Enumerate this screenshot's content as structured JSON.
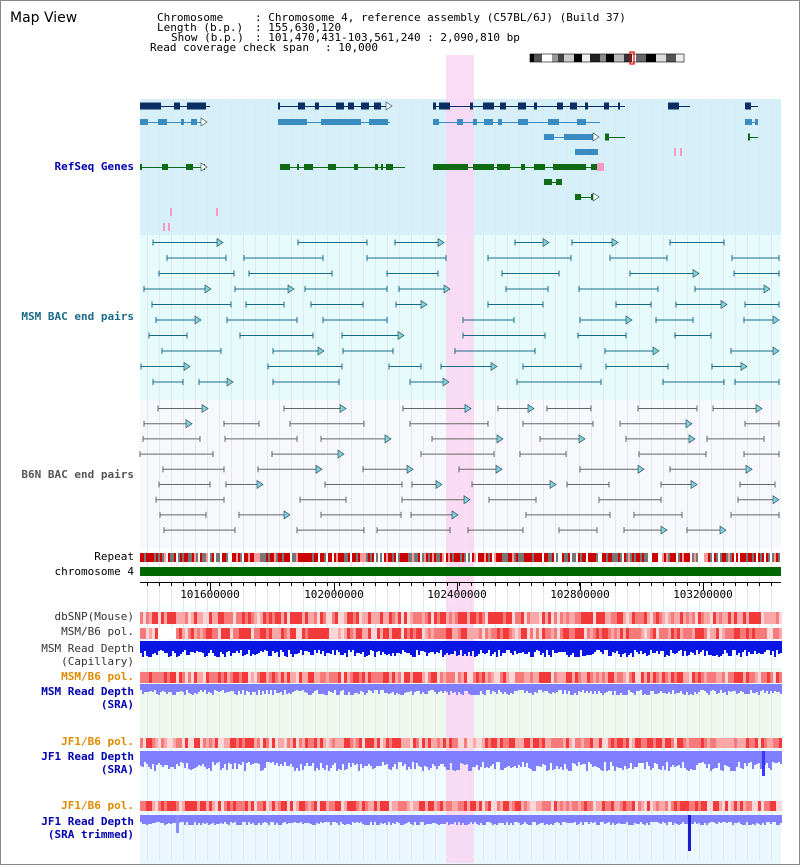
{
  "title": "Map View",
  "info": {
    "chromosome_key": "Chromosome",
    "chromosome_val": ": Chromosome 4, reference assembly (C57BL/6J) (Build 37)",
    "length_key": "Length (b.p.)",
    "length_val": ": 155,630,120",
    "show_key": "Show (b.p.)",
    "show_val": ": 101,470,431-103,561,240 : 2,090,810 bp",
    "coverage_key": "Read coverage check span",
    "coverage_val": ": 10,000"
  },
  "tracks": {
    "refseq": "RefSeq Genes",
    "msm_bac": "MSM BAC end pairs",
    "b6n_bac": "B6N BAC end pairs",
    "repeat": "Repeat",
    "chromosome": "chromosome 4",
    "dbsnp": "dbSNP(Mouse)",
    "msm_b6_pol": "MSM/B6 pol.",
    "msm_read_depth_cap_1": "MSM Read Depth",
    "msm_read_depth_cap_2": "(Capillary)",
    "msm_b6_pol_2": "MSM/B6 pol.",
    "msm_read_depth_sra_1": "MSM Read Depth",
    "msm_read_depth_sra_2": "(SRA)",
    "jf1_b6_pol": "JF1/B6 pol.",
    "jf1_read_depth_sra_1": "JF1 Read Depth",
    "jf1_read_depth_sra_2": "(SRA)",
    "jf1_b6_pol_2": "JF1/B6 pol.",
    "jf1_read_depth_trim_1": "JF1 Read Depth",
    "jf1_read_depth_trim_2": "(SRA trimmed)"
  },
  "axis": {
    "ticks": [
      "101600000",
      "102000000",
      "102400000",
      "102800000",
      "103200000"
    ]
  },
  "colors": {
    "refseq_bg": "#d6f0fa",
    "msm_bg": "#e6fcfc",
    "b6n_bg": "#f7f8fc",
    "highlight": "#f9d6f2",
    "gene_dark": "#0b2e63",
    "gene_mid": "#3a8cc0",
    "gene_green": "#0e6b14",
    "msm_line": "#1b6a8a",
    "b6n_line": "#666666",
    "orange_label": "#e08a00",
    "blue_label": "#0000b0",
    "depth_dark": "#0a16e6",
    "depth_light": "#7f7fff"
  }
}
